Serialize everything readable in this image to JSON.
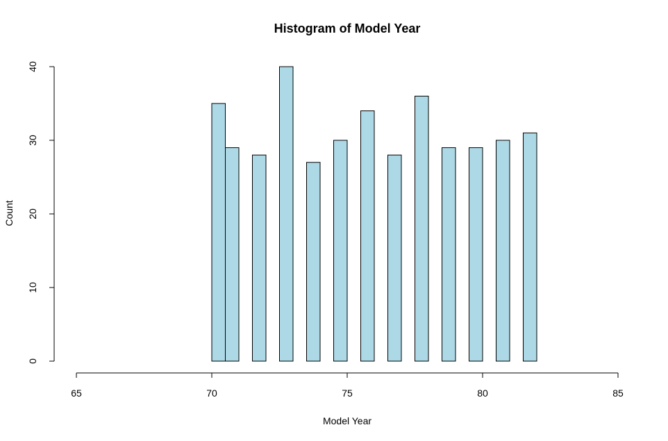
{
  "chart_data": {
    "type": "bar",
    "title": "Histogram of Model Year",
    "xlabel": "Model Year",
    "ylabel": "Count",
    "bar_color": "#add8e6",
    "bar_border_color": "#000000",
    "xlim": [
      65,
      85
    ],
    "ylim": [
      0,
      40
    ],
    "x_ticks": [
      "65",
      "70",
      "75",
      "80",
      "85"
    ],
    "y_ticks": [
      "0",
      "10",
      "20",
      "30",
      "40"
    ],
    "bins": [
      {
        "start": 70.0,
        "end": 70.5,
        "count": 35
      },
      {
        "start": 70.5,
        "end": 71.0,
        "count": 29
      },
      {
        "start": 71.5,
        "end": 72.0,
        "count": 28
      },
      {
        "start": 72.5,
        "end": 73.0,
        "count": 40
      },
      {
        "start": 73.5,
        "end": 74.0,
        "count": 27
      },
      {
        "start": 74.5,
        "end": 75.0,
        "count": 30
      },
      {
        "start": 75.5,
        "end": 76.0,
        "count": 34
      },
      {
        "start": 76.5,
        "end": 77.0,
        "count": 28
      },
      {
        "start": 77.5,
        "end": 78.0,
        "count": 36
      },
      {
        "start": 78.5,
        "end": 79.0,
        "count": 29
      },
      {
        "start": 79.5,
        "end": 80.0,
        "count": 29
      },
      {
        "start": 80.5,
        "end": 81.0,
        "count": 30
      },
      {
        "start": 81.5,
        "end": 82.0,
        "count": 31
      }
    ]
  }
}
